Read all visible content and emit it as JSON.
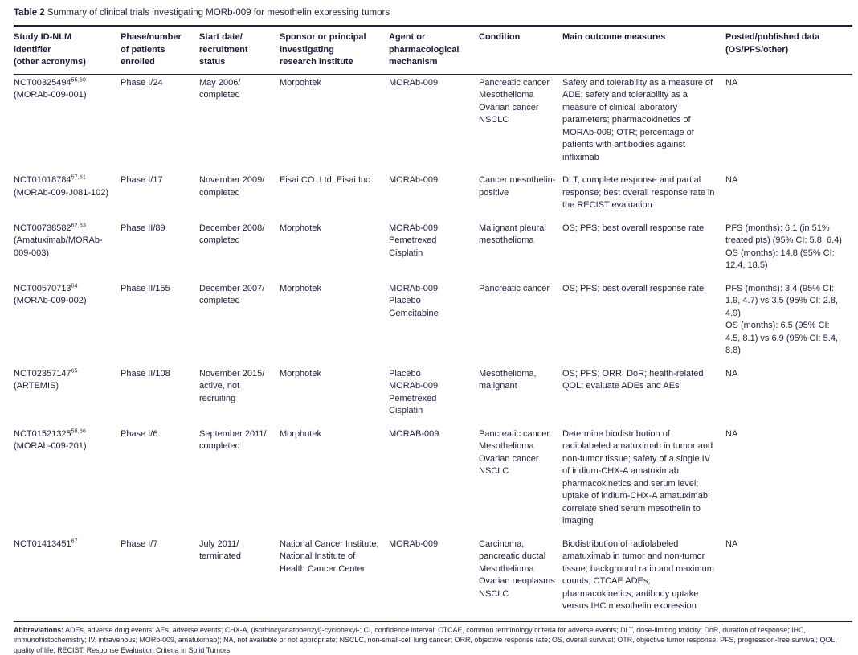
{
  "title": {
    "label": "Table 2",
    "text": "Summary of clinical trials investigating MORb-009 for mesothelin expressing tumors"
  },
  "table": {
    "columns": [
      "Study ID-NLM\nidentifier\n(other acronyms)",
      "Phase/number\nof patients\nenrolled",
      "Start date/\nrecruitment\nstatus",
      "Sponsor or principal\ninvestigating\nresearch institute",
      "Agent or\npharmacological\nmechanism",
      "Condition",
      "Main outcome measures",
      "Posted/published data\n(OS/PFS/other)"
    ],
    "rows": [
      {
        "study_id": "NCT00325494",
        "study_refs": "55,60",
        "study_acronym": "(MORAb-009-001)",
        "phase": "Phase I/24",
        "start": "May 2006/\ncompleted",
        "sponsor": "Morpohtek",
        "agent": "MORAb-009",
        "condition": "Pancreatic cancer\nMesothelioma\nOvarian cancer\nNSCLC",
        "outcome": "Safety and tolerability as a measure of ADE; safety and tolerability as a measure of clinical laboratory parameters; pharmacokinetics of MORAb-009; OTR; percentage of patients with antibodies against infliximab",
        "posted": "NA"
      },
      {
        "study_id": "NCT01018784",
        "study_refs": "57,61",
        "study_acronym": "(MORAb-009-J081-102)",
        "phase": "Phase I/17",
        "start": "November 2009/\ncompleted",
        "sponsor": "Eisai CO. Ltd; Eisai Inc.",
        "agent": "MORAb-009",
        "condition": "Cancer mesothelin-positive",
        "outcome": "DLT; complete response and partial response; best overall response rate in the RECIST evaluation",
        "posted": "NA"
      },
      {
        "study_id": "NCT00738582",
        "study_refs": "62,63",
        "study_acronym": "(Amatuximab/MORAb-009-003)",
        "phase": "Phase II/89",
        "start": "December 2008/\ncompleted",
        "sponsor": "Morphotek",
        "agent": "MORAb-009\nPemetrexed\nCisplatin",
        "condition": "Malignant pleural mesothelioma",
        "outcome": "OS; PFS; best overall response rate",
        "posted": "PFS (months): 6.1 (in 51% treated pts) (95% CI: 5.8, 6.4)\nOS (months): 14.8 (95% CI: 12.4, 18.5)"
      },
      {
        "study_id": "NCT00570713",
        "study_refs": "64",
        "study_acronym": "(MORAb-009-002)",
        "phase": "Phase II/155",
        "start": "December 2007/\ncompleted",
        "sponsor": "Morphotek",
        "agent": "MORAb-009\nPlacebo\nGemcitabine",
        "condition": "Pancreatic cancer",
        "outcome": "OS; PFS; best overall response rate",
        "posted": "PFS (months): 3.4 (95% CI: 1.9, 4.7) vs 3.5 (95% CI: 2.8, 4.9)\nOS (months): 6.5 (95% CI: 4.5, 8.1) vs 6.9 (95% CI: 5.4, 8.8)"
      },
      {
        "study_id": "NCT02357147",
        "study_refs": "65",
        "study_acronym": "(ARTEMIS)",
        "phase": "Phase II/108",
        "start": "November 2015/\nactive, not recruiting",
        "sponsor": "Morphotek",
        "agent": "Placebo\nMORAb-009\nPemetrexed\nCisplatin",
        "condition": "Mesothelioma, malignant",
        "outcome": "OS; PFS; ORR; DoR; health-related QOL; evaluate ADEs and AEs",
        "posted": "NA"
      },
      {
        "study_id": "NCT01521325",
        "study_refs": "58,66",
        "study_acronym": "(MORAb-009-201)",
        "phase": "Phase I/6",
        "start": "September 2011/\ncompleted",
        "sponsor": "Morphotek",
        "agent": "MORAB-009",
        "condition": "Pancreatic cancer\nMesothelioma\nOvarian cancer\nNSCLC",
        "outcome": "Determine biodistribution of radiolabeled amatuximab in tumor and non-tumor tissue; safety of a single IV of indium-CHX-A amatuximab; pharmacokinetics and serum level; uptake of indium-CHX-A amatuximab; correlate shed serum mesothelin to imaging",
        "posted": "NA"
      },
      {
        "study_id": "NCT01413451",
        "study_refs": "67",
        "study_acronym": "",
        "phase": "Phase I/7",
        "start": "July 2011/\nterminated",
        "sponsor": "National Cancer Institute; National Institute of Health Cancer Center",
        "agent": "MORAb-009",
        "condition": "Carcinoma, pancreatic ductal\nMesothelioma\nOvarian neoplasms\nNSCLC",
        "outcome": "Biodistribution of radiolabeled amatuximab in tumor and non-tumor tissue; background ratio and maximum counts; CTCAE ADEs; pharmacokinetics; antibody uptake versus IHC mesothelin expression",
        "posted": "NA"
      }
    ]
  },
  "footer": {
    "label": "Abbreviations:",
    "text": " ADEs, adverse drug events; AEs, adverse events; CHX-A, (isothiocyanatobenzyl)-cyclohexyl-; CI, confidence interval; CTCAE, common terminology criteria for adverse events; DLT, dose-limiting toxicity; DoR, duration of response; IHC, immunohistochemistry; IV, intravenous; MORb-009, amatuximab); NA, not available or not appropriate; NSCLC, non-small-cell lung cancer; ORR, objective response rate; OS, overall survival; OTR, objective tumor response; PFS, progression-free survival; QOL, quality of life; RECIST, Response Evaluation Criteria in Solid Tumors."
  }
}
